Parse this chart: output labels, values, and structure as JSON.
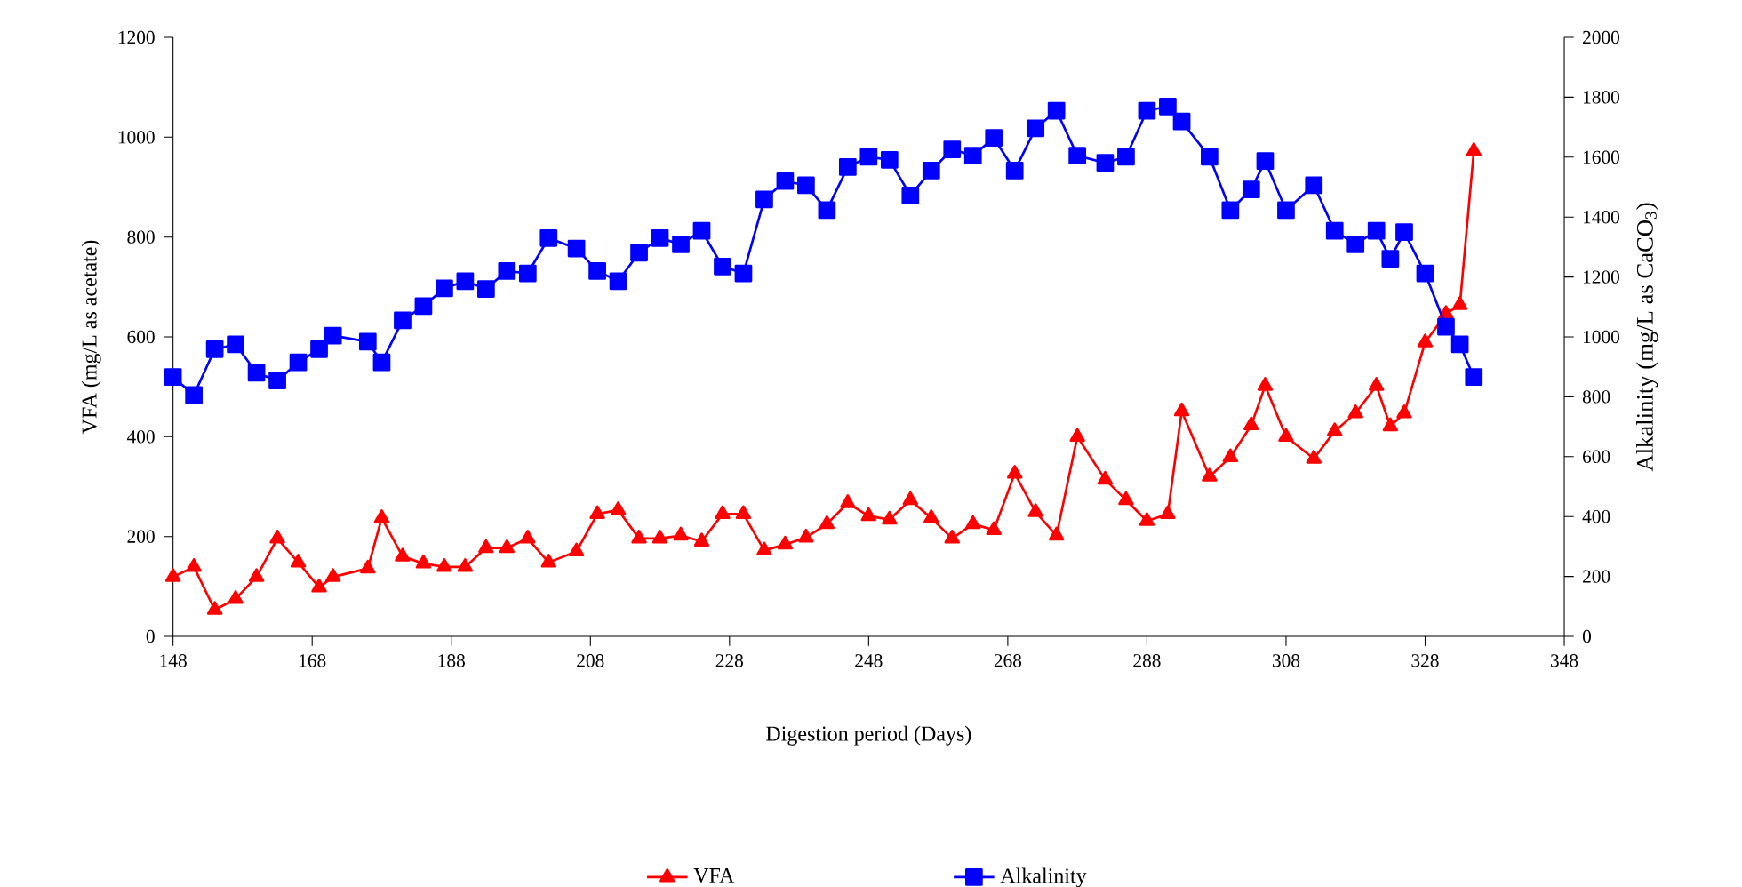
{
  "chart_data": {
    "type": "line",
    "xlabel": "Digestion period (Days)",
    "ylabel": "VFA (mg/L as acetate)",
    "y2label": "Alkalinity (mg/L as CaCO$_{3}$)",
    "x": [
      148,
      151,
      154,
      157,
      160,
      163,
      166,
      169,
      171,
      176,
      178,
      181,
      184,
      187,
      190,
      193,
      196,
      199,
      202,
      206,
      209,
      212,
      215,
      218,
      221,
      224,
      227,
      230,
      233,
      236,
      239,
      242,
      245,
      248,
      251,
      254,
      257,
      260,
      263,
      266,
      269,
      272,
      275,
      278,
      282,
      285,
      288,
      291,
      293,
      297,
      300,
      303,
      305,
      308,
      312,
      315,
      318,
      321,
      323,
      325,
      328,
      331,
      333,
      335
    ],
    "series": [
      {
        "name": "VFA",
        "color": "#ff0000",
        "marker": "triangle",
        "values": [
          119,
          139,
          53,
          75,
          119,
          196,
          148,
          98,
          119,
          136,
          237,
          160,
          146,
          139,
          139,
          177,
          177,
          196,
          148,
          170,
          245,
          253,
          196,
          196,
          202,
          190,
          245,
          245,
          172,
          184,
          198,
          225,
          267,
          241,
          234,
          273,
          237,
          196,
          225,
          213,
          326,
          249,
          202,
          400,
          314,
          273,
          231,
          245,
          451,
          320,
          359,
          423,
          502,
          400,
          356,
          411,
          447,
          502,
          421,
          447,
          589,
          646,
          664,
          972
        ]
      },
      {
        "name": "Alkalinity",
        "color": "#0000ff",
        "marker": "square",
        "axis": "y2",
        "values": [
          866,
          806,
          959,
          975,
          880,
          854,
          915,
          959,
          1004,
          984,
          915,
          1055,
          1103,
          1162,
          1186,
          1160,
          1220,
          1212,
          1330,
          1295,
          1220,
          1186,
          1281,
          1330,
          1309,
          1354,
          1235,
          1212,
          1459,
          1520,
          1506,
          1423,
          1567,
          1601,
          1591,
          1472,
          1555,
          1626,
          1605,
          1664,
          1555,
          1696,
          1755,
          1605,
          1581,
          1601,
          1755,
          1769,
          1719,
          1601,
          1423,
          1492,
          1587,
          1423,
          1506,
          1354,
          1309,
          1354,
          1261,
          1350,
          1212,
          1034,
          975,
          866
        ]
      }
    ],
    "xlim": [
      148,
      348
    ],
    "xticks": [
      148,
      168,
      188,
      208,
      228,
      248,
      268,
      288,
      308,
      328,
      348
    ],
    "ylim": [
      0,
      1200
    ],
    "yticks": [
      0,
      200,
      400,
      600,
      800,
      1000,
      1200
    ],
    "y2lim": [
      0,
      2000
    ],
    "y2ticks": [
      0,
      200,
      400,
      600,
      800,
      1000,
      1200,
      1400,
      1600,
      1800,
      2000
    ],
    "grid": false,
    "legend": "bottom",
    "line_style": "solid"
  }
}
